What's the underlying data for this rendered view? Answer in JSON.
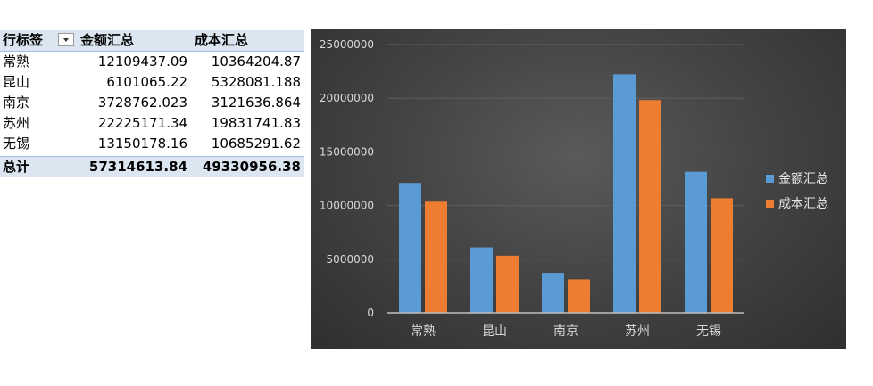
{
  "pivot": {
    "headers": [
      "行标签",
      "金额汇总",
      "成本汇总"
    ],
    "rows": [
      {
        "label": "常熟",
        "amount": "12109437.09",
        "cost": "10364204.87"
      },
      {
        "label": "昆山",
        "amount": "6101065.22",
        "cost": "5328081.188"
      },
      {
        "label": "南京",
        "amount": "3728762.023",
        "cost": "3121636.864"
      },
      {
        "label": "苏州",
        "amount": "22225171.34",
        "cost": "19831741.83"
      },
      {
        "label": "无锡",
        "amount": "13150178.16",
        "cost": "10685291.62"
      }
    ],
    "total": {
      "label": "总计",
      "amount": "57314613.84",
      "cost": "49330956.38"
    }
  },
  "chart_data": {
    "type": "bar",
    "categories": [
      "常熟",
      "昆山",
      "南京",
      "苏州",
      "无锡"
    ],
    "series": [
      {
        "name": "金额汇总",
        "values": [
          12109437.09,
          6101065.22,
          3728762.023,
          22225171.34,
          13150178.16
        ],
        "color": "#5b9bd5"
      },
      {
        "name": "成本汇总",
        "values": [
          10364204.87,
          5328081.188,
          3121636.864,
          19831741.83,
          10685291.62
        ],
        "color": "#ed7d31"
      }
    ],
    "ylim": [
      0,
      25000000
    ],
    "yticks": [
      "0",
      "5000000",
      "10000000",
      "15000000",
      "20000000",
      "25000000"
    ],
    "grid": true,
    "legend": "right",
    "background": "#404040"
  }
}
